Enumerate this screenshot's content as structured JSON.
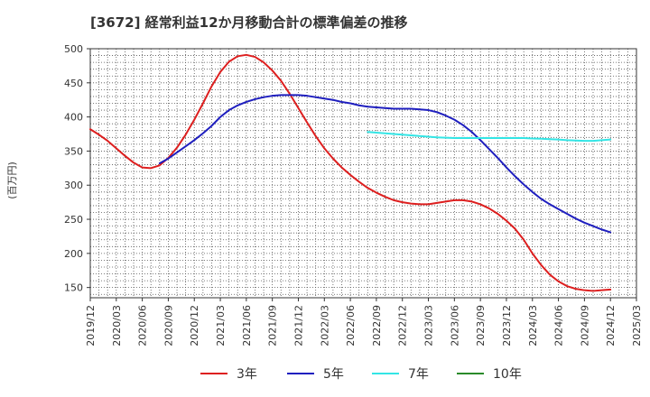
{
  "chart_data": {
    "type": "line",
    "title": "[3672]  経常利益12か月移動合計の標準偏差の推移",
    "ylabel": "(百万円)",
    "xlabel": "",
    "ylim": [
      135,
      500
    ],
    "yticks": [
      150,
      200,
      250,
      300,
      350,
      400,
      450,
      500
    ],
    "x_range": [
      "2019-12",
      "2025-03"
    ],
    "xticks": [
      "2019/12",
      "2020/03",
      "2020/06",
      "2020/09",
      "2020/12",
      "2021/03",
      "2021/06",
      "2021/09",
      "2021/12",
      "2022/03",
      "2022/06",
      "2022/09",
      "2022/12",
      "2023/03",
      "2023/06",
      "2023/09",
      "2023/12",
      "2024/03",
      "2024/06",
      "2024/09",
      "2024/12",
      "2025/03"
    ],
    "grid": true,
    "legend_position": "bottom",
    "series": [
      {
        "name": "3年",
        "color": "#dd1f1f",
        "points": [
          [
            "2019-12",
            382
          ],
          [
            "2020-01",
            374
          ],
          [
            "2020-02",
            365
          ],
          [
            "2020-03",
            354
          ],
          [
            "2020-04",
            343
          ],
          [
            "2020-05",
            333
          ],
          [
            "2020-06",
            326
          ],
          [
            "2020-07",
            325
          ],
          [
            "2020-08",
            329
          ],
          [
            "2020-09",
            340
          ],
          [
            "2020-10",
            355
          ],
          [
            "2020-11",
            374
          ],
          [
            "2020-12",
            396
          ],
          [
            "2021-01",
            420
          ],
          [
            "2021-02",
            445
          ],
          [
            "2021-03",
            466
          ],
          [
            "2021-04",
            481
          ],
          [
            "2021-05",
            489
          ],
          [
            "2021-06",
            491
          ],
          [
            "2021-07",
            488
          ],
          [
            "2021-08",
            480
          ],
          [
            "2021-09",
            468
          ],
          [
            "2021-10",
            453
          ],
          [
            "2021-11",
            434
          ],
          [
            "2021-12",
            413
          ],
          [
            "2022-01",
            392
          ],
          [
            "2022-02",
            372
          ],
          [
            "2022-03",
            354
          ],
          [
            "2022-04",
            339
          ],
          [
            "2022-05",
            326
          ],
          [
            "2022-06",
            315
          ],
          [
            "2022-07",
            305
          ],
          [
            "2022-08",
            296
          ],
          [
            "2022-09",
            289
          ],
          [
            "2022-10",
            283
          ],
          [
            "2022-11",
            278
          ],
          [
            "2022-12",
            275
          ],
          [
            "2023-01",
            273
          ],
          [
            "2023-02",
            272
          ],
          [
            "2023-03",
            272
          ],
          [
            "2023-04",
            274
          ],
          [
            "2023-05",
            276
          ],
          [
            "2023-06",
            278
          ],
          [
            "2023-07",
            278
          ],
          [
            "2023-08",
            276
          ],
          [
            "2023-09",
            272
          ],
          [
            "2023-10",
            266
          ],
          [
            "2023-11",
            258
          ],
          [
            "2023-12",
            248
          ],
          [
            "2024-01",
            236
          ],
          [
            "2024-02",
            220
          ],
          [
            "2024-03",
            200
          ],
          [
            "2024-04",
            183
          ],
          [
            "2024-05",
            169
          ],
          [
            "2024-06",
            159
          ],
          [
            "2024-07",
            152
          ],
          [
            "2024-08",
            148
          ],
          [
            "2024-09",
            146
          ],
          [
            "2024-10",
            145
          ],
          [
            "2024-11",
            146
          ],
          [
            "2024-12",
            147
          ]
        ]
      },
      {
        "name": "5年",
        "color": "#1f1fbf",
        "points": [
          [
            "2020-08",
            332
          ],
          [
            "2020-09",
            339
          ],
          [
            "2020-10",
            348
          ],
          [
            "2020-11",
            357
          ],
          [
            "2020-12",
            366
          ],
          [
            "2021-01",
            376
          ],
          [
            "2021-02",
            387
          ],
          [
            "2021-03",
            400
          ],
          [
            "2021-04",
            410
          ],
          [
            "2021-05",
            417
          ],
          [
            "2021-06",
            422
          ],
          [
            "2021-07",
            426
          ],
          [
            "2021-08",
            429
          ],
          [
            "2021-09",
            431
          ],
          [
            "2021-10",
            432
          ],
          [
            "2021-11",
            432
          ],
          [
            "2021-12",
            432
          ],
          [
            "2022-01",
            431
          ],
          [
            "2022-02",
            429
          ],
          [
            "2022-03",
            427
          ],
          [
            "2022-04",
            425
          ],
          [
            "2022-05",
            422
          ],
          [
            "2022-06",
            420
          ],
          [
            "2022-07",
            417
          ],
          [
            "2022-08",
            415
          ],
          [
            "2022-09",
            414
          ],
          [
            "2022-10",
            413
          ],
          [
            "2022-11",
            412
          ],
          [
            "2022-12",
            412
          ],
          [
            "2023-01",
            412
          ],
          [
            "2023-02",
            411
          ],
          [
            "2023-03",
            410
          ],
          [
            "2023-04",
            407
          ],
          [
            "2023-05",
            402
          ],
          [
            "2023-06",
            396
          ],
          [
            "2023-07",
            388
          ],
          [
            "2023-08",
            378
          ],
          [
            "2023-09",
            366
          ],
          [
            "2023-10",
            353
          ],
          [
            "2023-11",
            340
          ],
          [
            "2023-12",
            326
          ],
          [
            "2024-01",
            313
          ],
          [
            "2024-02",
            301
          ],
          [
            "2024-03",
            290
          ],
          [
            "2024-04",
            280
          ],
          [
            "2024-05",
            272
          ],
          [
            "2024-06",
            265
          ],
          [
            "2024-07",
            258
          ],
          [
            "2024-08",
            251
          ],
          [
            "2024-09",
            245
          ],
          [
            "2024-10",
            240
          ],
          [
            "2024-11",
            235
          ],
          [
            "2024-12",
            231
          ]
        ]
      },
      {
        "name": "7年",
        "color": "#33e5e5",
        "points": [
          [
            "2022-08",
            378
          ],
          [
            "2022-09",
            377
          ],
          [
            "2022-10",
            376
          ],
          [
            "2022-11",
            375
          ],
          [
            "2022-12",
            374
          ],
          [
            "2023-01",
            373
          ],
          [
            "2023-02",
            372
          ],
          [
            "2023-03",
            371
          ],
          [
            "2023-04",
            370
          ],
          [
            "2023-05",
            369.5
          ],
          [
            "2023-06",
            369
          ],
          [
            "2023-07",
            369
          ],
          [
            "2023-08",
            369
          ],
          [
            "2023-09",
            369
          ],
          [
            "2023-10",
            369
          ],
          [
            "2023-11",
            369
          ],
          [
            "2023-12",
            369
          ],
          [
            "2024-01",
            369
          ],
          [
            "2024-02",
            369
          ],
          [
            "2024-03",
            368.5
          ],
          [
            "2024-04",
            368
          ],
          [
            "2024-05",
            367.5
          ],
          [
            "2024-06",
            367
          ],
          [
            "2024-07",
            366
          ],
          [
            "2024-08",
            365.5
          ],
          [
            "2024-09",
            365
          ],
          [
            "2024-10",
            365
          ],
          [
            "2024-11",
            366
          ],
          [
            "2024-12",
            367
          ]
        ]
      },
      {
        "name": "10年",
        "color": "#2a8a2a",
        "points": []
      }
    ]
  }
}
